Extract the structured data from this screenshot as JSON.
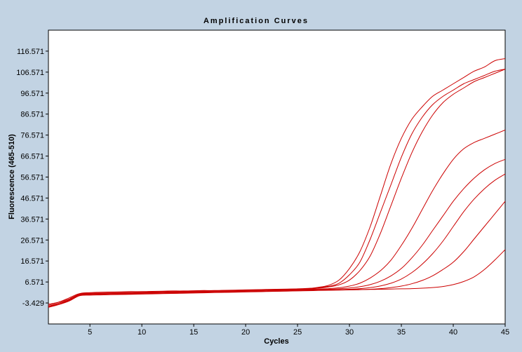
{
  "colors": {
    "background": "#c2d3e3",
    "plot_background": "#ffffff",
    "curve": "#cc0000",
    "axis": "#000000"
  },
  "chart_data": {
    "type": "line",
    "title": "Amplification Curves",
    "xlabel": "Cycles",
    "ylabel": "Fluorescence (465-510)",
    "xlim": [
      1,
      45
    ],
    "ylim": [
      -13.429,
      126.571
    ],
    "x_ticks": [
      5,
      10,
      15,
      20,
      25,
      30,
      35,
      40,
      45
    ],
    "x_tick_labels": [
      "5",
      "10",
      "15",
      "20",
      "25",
      "30",
      "35",
      "40",
      "45"
    ],
    "y_ticks": [
      116.571,
      106.571,
      96.571,
      86.571,
      76.571,
      66.571,
      56.571,
      46.571,
      36.571,
      26.571,
      16.571,
      6.571,
      -3.429
    ],
    "y_tick_labels": [
      "116.571",
      "106.571",
      "96.571",
      "86.571",
      "76.571",
      "66.571",
      "56.571",
      "46.571",
      "36.571",
      "26.571",
      "16.571",
      "6.571",
      "-3.429"
    ],
    "grid": false,
    "legend": "none",
    "series": [
      {
        "x": [
          1,
          2,
          3,
          4,
          5,
          6,
          7,
          8,
          9,
          10,
          11,
          12,
          13,
          14,
          15,
          16,
          17,
          18,
          19,
          20,
          21,
          22,
          23,
          24,
          25,
          26,
          27,
          28,
          29,
          30,
          31,
          32,
          33,
          34,
          35,
          36,
          37,
          38,
          39,
          40,
          41,
          42,
          43,
          44,
          45
        ],
        "y": [
          -4,
          -3,
          -1,
          1,
          1,
          1.2,
          1.3,
          1.4,
          1.5,
          1.6,
          1.7,
          1.8,
          1.9,
          2,
          2.1,
          2.2,
          2.3,
          2.4,
          2.5,
          2.6,
          2.7,
          2.8,
          2.9,
          3,
          3.2,
          3.4,
          4,
          5,
          7.5,
          13,
          21,
          33,
          48,
          63,
          75,
          84,
          90,
          95,
          98,
          101,
          104,
          107,
          109,
          112,
          113
        ]
      },
      {
        "x": [
          1,
          2,
          3,
          4,
          5,
          6,
          7,
          8,
          9,
          10,
          11,
          12,
          13,
          14,
          15,
          16,
          17,
          18,
          19,
          20,
          21,
          22,
          23,
          24,
          25,
          26,
          27,
          28,
          29,
          30,
          31,
          32,
          33,
          34,
          35,
          36,
          37,
          38,
          39,
          40,
          41,
          42,
          43,
          44,
          45
        ],
        "y": [
          -5,
          -3.5,
          -2,
          1,
          1.5,
          1.7,
          1.8,
          1.9,
          2,
          2,
          2.1,
          2.2,
          2.3,
          2.3,
          2.4,
          2.5,
          2.5,
          2.6,
          2.7,
          2.8,
          2.9,
          3,
          3.1,
          3.2,
          3.3,
          3.5,
          3.8,
          4.5,
          6,
          10,
          16,
          27,
          40,
          53,
          66,
          77,
          85,
          91,
          95,
          98,
          101,
          103,
          105,
          107,
          108
        ]
      },
      {
        "x": [
          1,
          2,
          3,
          4,
          5,
          6,
          7,
          8,
          9,
          10,
          11,
          12,
          13,
          14,
          15,
          16,
          17,
          18,
          19,
          20,
          21,
          22,
          23,
          24,
          25,
          26,
          27,
          28,
          29,
          30,
          31,
          32,
          33,
          34,
          35,
          36,
          37,
          38,
          39,
          40,
          41,
          42,
          43,
          44,
          45
        ],
        "y": [
          -4.5,
          -3,
          -1.5,
          0.8,
          1.2,
          1.3,
          1.4,
          1.5,
          1.6,
          1.7,
          1.8,
          1.9,
          2,
          2.1,
          2.2,
          2.3,
          2.4,
          2.5,
          2.6,
          2.7,
          2.8,
          2.9,
          3,
          3.1,
          3.2,
          3.3,
          3.6,
          4.2,
          5.2,
          7.5,
          12,
          19,
          30,
          43,
          56,
          68,
          78,
          86,
          92,
          96,
          99,
          102,
          104,
          106,
          108
        ]
      },
      {
        "x": [
          1,
          2,
          3,
          4,
          5,
          6,
          7,
          8,
          9,
          10,
          11,
          12,
          13,
          14,
          15,
          16,
          17,
          18,
          19,
          20,
          21,
          22,
          23,
          24,
          25,
          26,
          27,
          28,
          29,
          30,
          31,
          32,
          33,
          34,
          35,
          36,
          37,
          38,
          39,
          40,
          41,
          42,
          43,
          44,
          45
        ],
        "y": [
          -5,
          -3.5,
          -1.8,
          0.5,
          1,
          1.1,
          1.2,
          1.3,
          1.4,
          1.5,
          1.6,
          1.7,
          1.8,
          1.9,
          2,
          2.1,
          2.2,
          2.3,
          2.4,
          2.5,
          2.6,
          2.7,
          2.8,
          2.9,
          3,
          3.1,
          3.2,
          3.4,
          3.8,
          4.6,
          6,
          8.5,
          12,
          17,
          24,
          32,
          41,
          50,
          58,
          65,
          70,
          73,
          75,
          77,
          79
        ]
      },
      {
        "x": [
          1,
          2,
          3,
          4,
          5,
          6,
          7,
          8,
          9,
          10,
          11,
          12,
          13,
          14,
          15,
          16,
          17,
          18,
          19,
          20,
          21,
          22,
          23,
          24,
          25,
          26,
          27,
          28,
          29,
          30,
          31,
          32,
          33,
          34,
          35,
          36,
          37,
          38,
          39,
          40,
          41,
          42,
          43,
          44,
          45
        ],
        "y": [
          -5.5,
          -4,
          -2,
          0.3,
          0.8,
          0.9,
          1,
          1.1,
          1.2,
          1.3,
          1.4,
          1.5,
          1.6,
          1.7,
          1.8,
          1.9,
          2,
          2.1,
          2.2,
          2.3,
          2.4,
          2.5,
          2.6,
          2.7,
          2.8,
          2.9,
          3,
          3.1,
          3.3,
          3.7,
          4.3,
          5.3,
          7,
          9.5,
          13,
          18,
          24,
          31,
          38,
          45,
          51,
          56,
          60,
          63,
          65
        ]
      },
      {
        "x": [
          1,
          2,
          3,
          4,
          5,
          6,
          7,
          8,
          9,
          10,
          11,
          12,
          13,
          14,
          15,
          16,
          17,
          18,
          19,
          20,
          21,
          22,
          23,
          24,
          25,
          26,
          27,
          28,
          29,
          30,
          31,
          32,
          33,
          34,
          35,
          36,
          37,
          38,
          39,
          40,
          41,
          42,
          43,
          44,
          45
        ],
        "y": [
          -5,
          -4,
          -2.2,
          0.2,
          0.5,
          0.6,
          0.7,
          0.8,
          0.9,
          1,
          1.1,
          1.2,
          1.3,
          1.4,
          1.5,
          1.6,
          1.7,
          1.8,
          1.9,
          2,
          2.1,
          2.2,
          2.3,
          2.4,
          2.5,
          2.6,
          2.7,
          2.8,
          2.9,
          3.1,
          3.4,
          3.9,
          4.7,
          6,
          8,
          11,
          15,
          20,
          26,
          33,
          40,
          46,
          51,
          55,
          58
        ]
      },
      {
        "x": [
          1,
          2,
          3,
          4,
          5,
          6,
          7,
          8,
          9,
          10,
          11,
          12,
          13,
          14,
          15,
          16,
          17,
          18,
          19,
          20,
          21,
          22,
          23,
          24,
          25,
          26,
          27,
          28,
          29,
          30,
          31,
          32,
          33,
          34,
          35,
          36,
          37,
          38,
          39,
          40,
          41,
          42,
          43,
          44,
          45
        ],
        "y": [
          -5.5,
          -4.2,
          -2.5,
          0,
          0.3,
          0.4,
          0.5,
          0.6,
          0.7,
          0.8,
          0.9,
          1,
          1.1,
          1.2,
          1.3,
          1.4,
          1.5,
          1.6,
          1.7,
          1.8,
          1.9,
          2,
          2.1,
          2.2,
          2.3,
          2.4,
          2.5,
          2.6,
          2.7,
          2.8,
          2.9,
          3.1,
          3.4,
          3.9,
          4.6,
          5.7,
          7.3,
          9.5,
          12.5,
          16,
          21,
          27,
          33,
          39,
          45
        ]
      },
      {
        "x": [
          1,
          2,
          3,
          4,
          5,
          6,
          7,
          8,
          9,
          10,
          11,
          12,
          13,
          14,
          15,
          16,
          17,
          18,
          19,
          20,
          21,
          22,
          23,
          24,
          25,
          26,
          27,
          28,
          29,
          30,
          31,
          32,
          33,
          34,
          35,
          36,
          37,
          38,
          39,
          40,
          41,
          42,
          43,
          44,
          45
        ],
        "y": [
          -5,
          -4,
          -2.3,
          0.1,
          0.4,
          0.5,
          0.6,
          0.7,
          0.8,
          0.9,
          1,
          1.1,
          1.2,
          1.3,
          1.4,
          1.5,
          1.6,
          1.7,
          1.8,
          1.9,
          2,
          2.1,
          2.2,
          2.3,
          2.4,
          2.5,
          2.6,
          2.7,
          2.8,
          2.9,
          3,
          3,
          3.1,
          3.2,
          3.3,
          3.4,
          3.6,
          3.9,
          4.4,
          5.3,
          6.8,
          9,
          12.5,
          17,
          22
        ]
      }
    ]
  }
}
